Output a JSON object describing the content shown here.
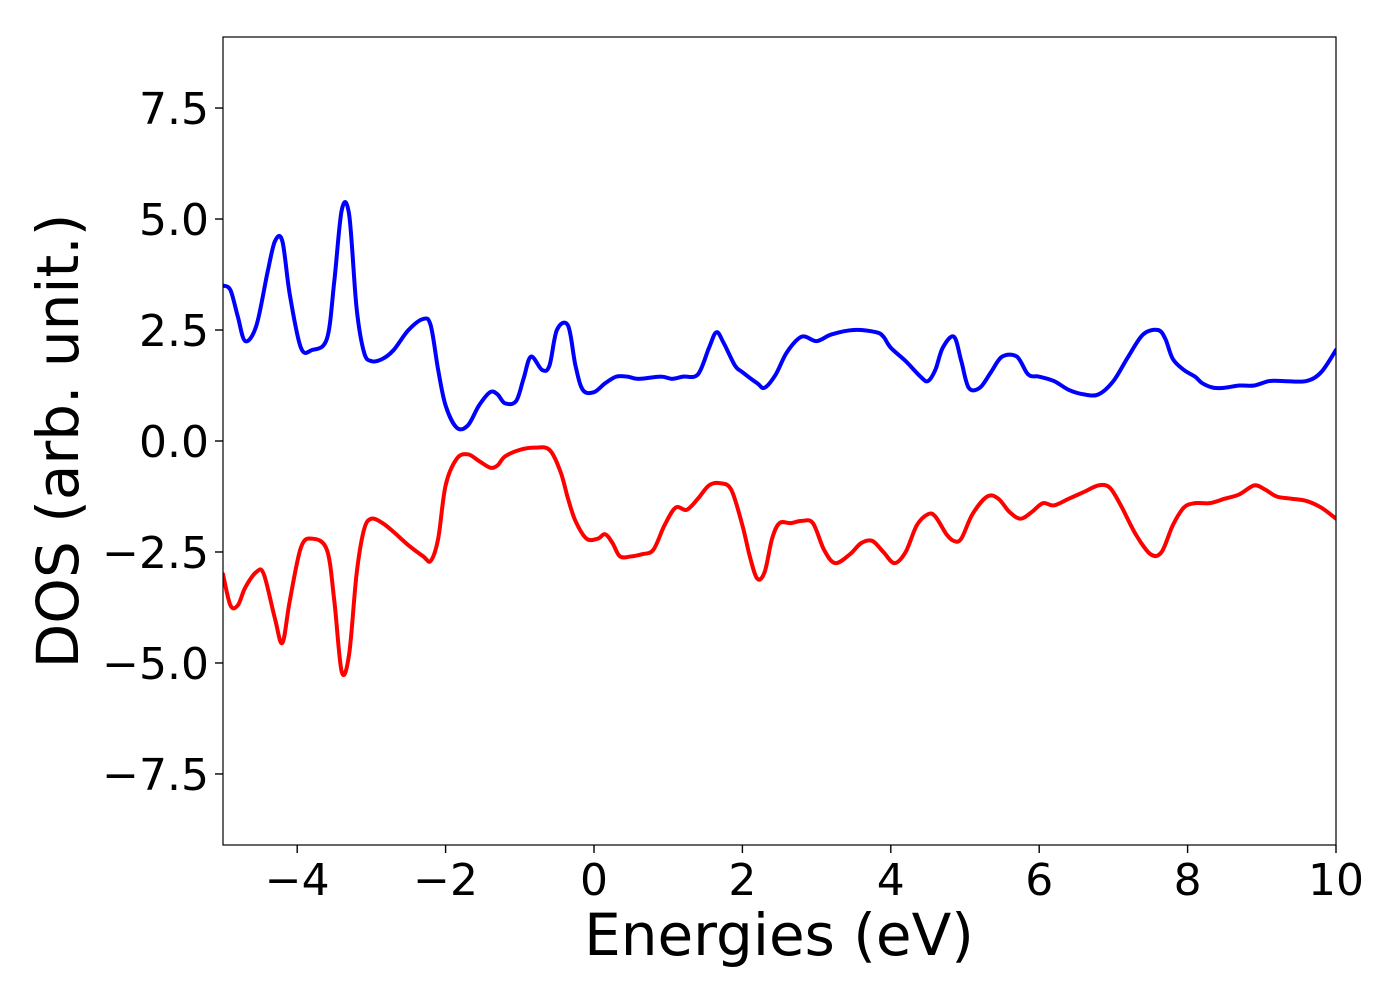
{
  "chart_data": {
    "type": "line",
    "title": "",
    "xlabel": "Energies (eV)",
    "ylabel": "DOS (arb. unit.)",
    "xlim": [
      -5,
      10
    ],
    "ylim": [
      -9.1,
      9.1
    ],
    "grid": false,
    "legend": "none",
    "xticks": [
      {
        "value": -4,
        "label": "−4"
      },
      {
        "value": -2,
        "label": "−2"
      },
      {
        "value": 0,
        "label": "0"
      },
      {
        "value": 2,
        "label": "2"
      },
      {
        "value": 4,
        "label": "4"
      },
      {
        "value": 6,
        "label": "6"
      },
      {
        "value": 8,
        "label": "8"
      },
      {
        "value": 10,
        "label": "10"
      }
    ],
    "yticks": [
      {
        "value": -7.5,
        "label": "−7.5"
      },
      {
        "value": -5.0,
        "label": "−5.0"
      },
      {
        "value": -2.5,
        "label": "−2.5"
      },
      {
        "value": 0.0,
        "label": "0.0"
      },
      {
        "value": 2.5,
        "label": "2.5"
      },
      {
        "value": 5.0,
        "label": "5.0"
      },
      {
        "value": 7.5,
        "label": "7.5"
      }
    ],
    "series": [
      {
        "color": "#0000ff",
        "x": [
          -5.0,
          -4.9,
          -4.8,
          -4.7,
          -4.55,
          -4.4,
          -4.3,
          -4.2,
          -4.1,
          -3.95,
          -3.8,
          -3.6,
          -3.5,
          -3.4,
          -3.3,
          -3.2,
          -3.1,
          -3.0,
          -2.85,
          -2.7,
          -2.5,
          -2.3,
          -2.2,
          -2.1,
          -2.0,
          -1.85,
          -1.7,
          -1.55,
          -1.4,
          -1.3,
          -1.2,
          -1.05,
          -0.95,
          -0.85,
          -0.7,
          -0.6,
          -0.5,
          -0.35,
          -0.25,
          -0.15,
          0.0,
          0.15,
          0.3,
          0.45,
          0.6,
          0.9,
          1.05,
          1.2,
          1.4,
          1.55,
          1.65,
          1.75,
          1.9,
          2.0,
          2.2,
          2.3,
          2.45,
          2.6,
          2.8,
          3.0,
          3.2,
          3.5,
          3.8,
          3.9,
          4.0,
          4.2,
          4.4,
          4.5,
          4.6,
          4.7,
          4.85,
          4.95,
          5.05,
          5.2,
          5.35,
          5.5,
          5.7,
          5.85,
          6.0,
          6.2,
          6.4,
          6.6,
          6.8,
          7.0,
          7.2,
          7.4,
          7.6,
          7.7,
          7.8,
          7.95,
          8.1,
          8.2,
          8.35,
          8.5,
          8.7,
          8.9,
          9.1,
          9.3,
          9.6,
          9.8,
          10.0
        ],
        "y": [
          3.5,
          3.4,
          2.8,
          2.25,
          2.6,
          3.8,
          4.5,
          4.5,
          3.3,
          2.1,
          2.05,
          2.3,
          3.6,
          5.2,
          5.1,
          3.0,
          2.0,
          1.8,
          1.85,
          2.05,
          2.5,
          2.75,
          2.6,
          1.6,
          0.8,
          0.3,
          0.35,
          0.8,
          1.1,
          1.05,
          0.85,
          0.9,
          1.4,
          1.9,
          1.6,
          1.7,
          2.5,
          2.6,
          1.7,
          1.15,
          1.1,
          1.3,
          1.45,
          1.45,
          1.4,
          1.45,
          1.4,
          1.45,
          1.5,
          2.1,
          2.45,
          2.2,
          1.7,
          1.55,
          1.3,
          1.2,
          1.5,
          2.0,
          2.35,
          2.25,
          2.4,
          2.5,
          2.45,
          2.35,
          2.1,
          1.8,
          1.45,
          1.35,
          1.6,
          2.1,
          2.35,
          1.8,
          1.2,
          1.2,
          1.55,
          1.9,
          1.9,
          1.5,
          1.45,
          1.35,
          1.15,
          1.05,
          1.05,
          1.35,
          1.9,
          2.4,
          2.5,
          2.3,
          1.85,
          1.6,
          1.45,
          1.3,
          1.2,
          1.2,
          1.25,
          1.25,
          1.35,
          1.35,
          1.35,
          1.55,
          2.05
        ]
      },
      {
        "color": "#ff0000",
        "x": [
          -5.0,
          -4.9,
          -4.8,
          -4.7,
          -4.55,
          -4.45,
          -4.3,
          -4.2,
          -4.1,
          -3.95,
          -3.8,
          -3.6,
          -3.5,
          -3.4,
          -3.3,
          -3.2,
          -3.1,
          -3.0,
          -2.85,
          -2.7,
          -2.5,
          -2.3,
          -2.2,
          -2.1,
          -2.0,
          -1.85,
          -1.7,
          -1.55,
          -1.4,
          -1.3,
          -1.2,
          -1.0,
          -0.8,
          -0.6,
          -0.45,
          -0.35,
          -0.25,
          -0.1,
          0.05,
          0.15,
          0.25,
          0.35,
          0.5,
          0.65,
          0.8,
          0.95,
          1.1,
          1.25,
          1.4,
          1.55,
          1.7,
          1.85,
          2.0,
          2.1,
          2.2,
          2.3,
          2.4,
          2.5,
          2.65,
          2.8,
          2.95,
          3.1,
          3.25,
          3.45,
          3.6,
          3.75,
          3.9,
          4.05,
          4.2,
          4.35,
          4.5,
          4.6,
          4.75,
          4.85,
          4.95,
          5.1,
          5.3,
          5.45,
          5.6,
          5.75,
          5.9,
          6.05,
          6.2,
          6.4,
          6.6,
          6.8,
          6.95,
          7.1,
          7.3,
          7.5,
          7.65,
          7.8,
          7.95,
          8.1,
          8.3,
          8.5,
          8.7,
          8.9,
          9.05,
          9.2,
          9.4,
          9.6,
          9.8,
          10.0
        ],
        "y": [
          -3.0,
          -3.7,
          -3.7,
          -3.3,
          -2.95,
          -3.0,
          -4.0,
          -4.55,
          -3.6,
          -2.4,
          -2.2,
          -2.45,
          -3.6,
          -5.2,
          -4.8,
          -3.0,
          -2.0,
          -1.75,
          -1.85,
          -2.05,
          -2.35,
          -2.6,
          -2.7,
          -2.2,
          -1.0,
          -0.4,
          -0.3,
          -0.45,
          -0.6,
          -0.55,
          -0.35,
          -0.2,
          -0.15,
          -0.2,
          -0.7,
          -1.3,
          -1.8,
          -2.2,
          -2.2,
          -2.1,
          -2.3,
          -2.6,
          -2.6,
          -2.55,
          -2.45,
          -1.9,
          -1.5,
          -1.55,
          -1.3,
          -1.0,
          -0.95,
          -1.1,
          -1.9,
          -2.6,
          -3.1,
          -2.95,
          -2.2,
          -1.85,
          -1.85,
          -1.8,
          -1.85,
          -2.45,
          -2.75,
          -2.55,
          -2.3,
          -2.25,
          -2.5,
          -2.75,
          -2.5,
          -1.9,
          -1.65,
          -1.7,
          -2.1,
          -2.25,
          -2.2,
          -1.65,
          -1.25,
          -1.3,
          -1.6,
          -1.75,
          -1.6,
          -1.4,
          -1.45,
          -1.3,
          -1.15,
          -1.0,
          -1.05,
          -1.45,
          -2.1,
          -2.55,
          -2.5,
          -1.9,
          -1.5,
          -1.4,
          -1.4,
          -1.3,
          -1.2,
          -1.0,
          -1.1,
          -1.25,
          -1.3,
          -1.35,
          -1.5,
          -1.75
        ]
      }
    ]
  }
}
